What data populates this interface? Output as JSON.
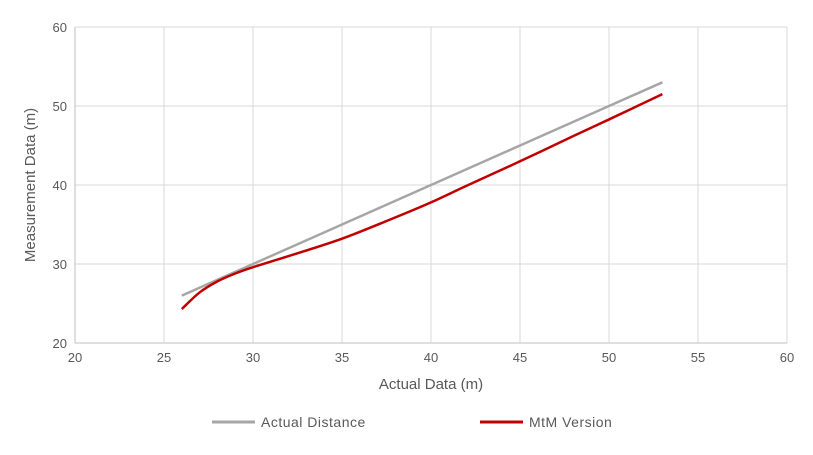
{
  "chart_data": {
    "type": "line",
    "xlabel": "Actual Data (m)",
    "ylabel": "Measurement Data (m)",
    "xlim": [
      20,
      60
    ],
    "ylim": [
      20,
      60
    ],
    "xticks": [
      20,
      25,
      30,
      35,
      40,
      45,
      50,
      55,
      60
    ],
    "yticks": [
      20,
      30,
      40,
      50,
      60
    ],
    "grid": true,
    "legend_position": "bottom",
    "series": [
      {
        "name": "Actual Distance",
        "color": "#a6a6a6",
        "x": [
          26,
          30,
          35,
          40,
          45,
          50,
          53
        ],
        "y": [
          26,
          30,
          35,
          40,
          45,
          50,
          53
        ]
      },
      {
        "name": "MtM Version",
        "color": "#c00000",
        "x": [
          26,
          27,
          28,
          29,
          30,
          32,
          35,
          38,
          40,
          42,
          45,
          48,
          50,
          53
        ],
        "y": [
          24.3,
          26.4,
          27.8,
          28.8,
          29.6,
          31.0,
          33.2,
          35.9,
          37.8,
          39.9,
          43.0,
          46.2,
          48.3,
          51.5
        ]
      }
    ]
  }
}
